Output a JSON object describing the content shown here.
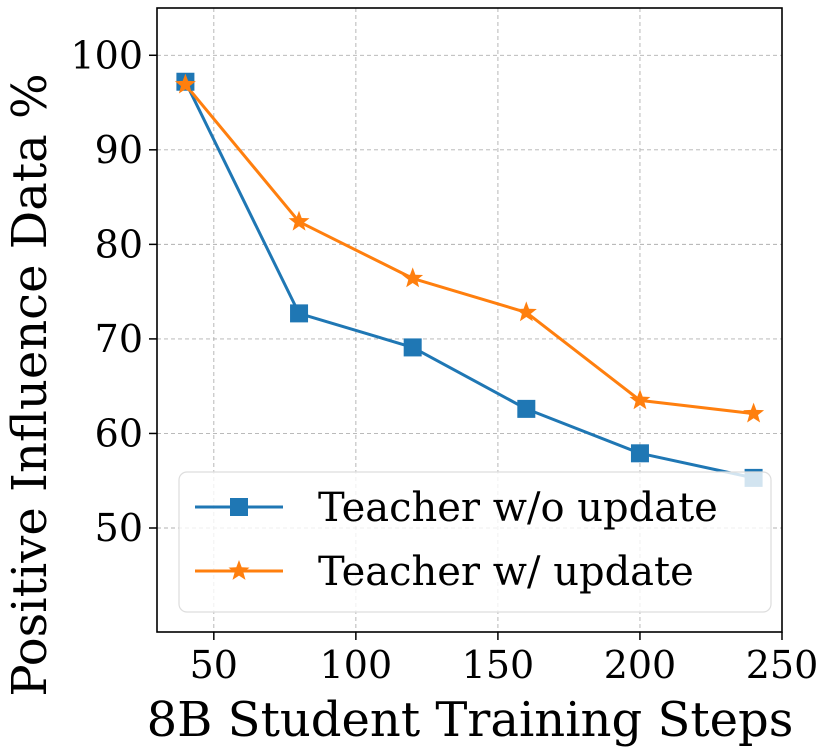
{
  "chart_data": {
    "type": "line",
    "title": "",
    "xlabel": "8B Student Training Steps",
    "ylabel": "Positive Influence Data %",
    "xlim": [
      30,
      250
    ],
    "ylim": [
      39,
      105
    ],
    "x_ticks": [
      "50",
      "100",
      "150",
      "200",
      "250"
    ],
    "y_ticks": [
      "50",
      "60",
      "70",
      "80",
      "90",
      "100"
    ],
    "grid": true,
    "legend_position": "lower-right",
    "x": [
      40,
      80,
      120,
      160,
      200,
      240
    ],
    "series": [
      {
        "name": "Teacher w/o update",
        "values": [
          97.2,
          72.7,
          69.1,
          62.6,
          57.9,
          55.3
        ],
        "color": "#1f77b4",
        "marker": "square"
      },
      {
        "name": "Teacher w/ update",
        "values": [
          96.9,
          82.4,
          76.4,
          72.8,
          63.5,
          62.1
        ],
        "color": "#ff7f0e",
        "marker": "star"
      }
    ]
  }
}
